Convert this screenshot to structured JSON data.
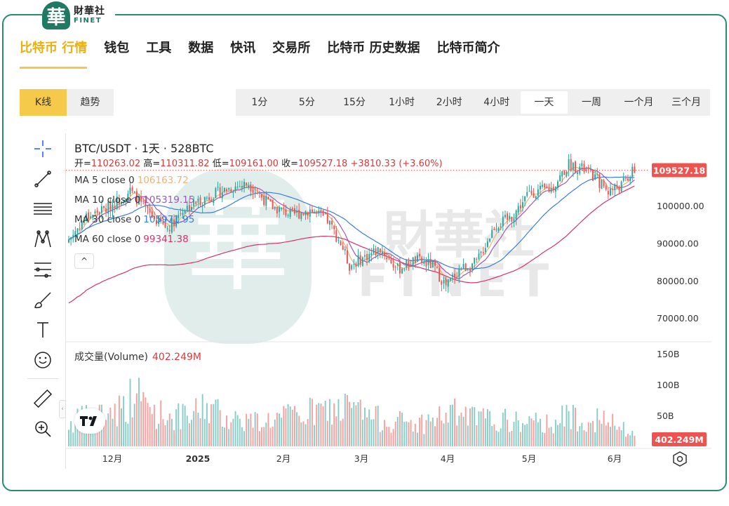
{
  "logo": {
    "mark": "華",
    "cn": "財華社",
    "en": "FINET"
  },
  "nav": {
    "items": [
      "比特币 行情",
      "钱包",
      "工具",
      "数据",
      "快讯",
      "交易所",
      "比特币 历史数据",
      "比特币简介"
    ],
    "active": 0
  },
  "chart_type_tabs": {
    "items": [
      "K线",
      "趋势"
    ],
    "active": 0
  },
  "period_tabs": {
    "items": [
      "1分",
      "5分",
      "15分",
      "1小时",
      "2小时",
      "4小时",
      "一天",
      "一周",
      "一个月",
      "三个月"
    ],
    "active": 6
  },
  "toolbar": {
    "icons": [
      "crosshair-icon",
      "trendline-icon",
      "fib-lines-icon",
      "pattern-icon",
      "prediction-icon",
      "brush-icon",
      "text-icon",
      "emoji-icon",
      "ruler-icon",
      "zoom-in-icon"
    ]
  },
  "legend": {
    "title": "BTC/USDT · 1天 · 528BTC",
    "open_label": "开=",
    "open": "110263.02",
    "high_label": "高=",
    "high": "110311.82",
    "low_label": "低=",
    "low": "109161.00",
    "close_label": "收=",
    "close": "109527.18",
    "change": "+3810.33 (+3.60%)",
    "ma": [
      {
        "label": "MA 5 close 0",
        "value": "106163.72",
        "color": "#f0b27a"
      },
      {
        "label": "MA 10 close 0",
        "value": "105319.15",
        "color": "#9b59b6"
      },
      {
        "label": "MA 30 close 0",
        "value": "105971.95",
        "color": "#3b7dd8"
      },
      {
        "label": "MA 60 close 0",
        "value": "99341.38",
        "color": "#d6336c"
      }
    ],
    "collapse": "^"
  },
  "volume_legend": {
    "label": "成交量(Volume)",
    "value": "402.249M"
  },
  "colors": {
    "up": "#26a69a",
    "down": "#ef5350",
    "accent": "#f5c94a",
    "brand": "#1f7a64"
  },
  "chart_data": {
    "type": "candlestick",
    "x_ticks": [
      "12月",
      "2025",
      "2月",
      "3月",
      "4月",
      "5月",
      "6月"
    ],
    "y_ticks": [
      "100000.00",
      "90000.00",
      "80000.00",
      "70000.00"
    ],
    "ylim": [
      64000,
      116000
    ],
    "volume_ticks": [
      "150B",
      "100B",
      "50B"
    ],
    "volume_ylim": [
      0,
      160
    ],
    "last_price": "109527.18",
    "last_volume": "402.249M",
    "close_anchors": [
      [
        0,
        91000
      ],
      [
        8,
        97000
      ],
      [
        18,
        99500
      ],
      [
        28,
        104000
      ],
      [
        38,
        97000
      ],
      [
        45,
        94000
      ],
      [
        52,
        99000
      ],
      [
        62,
        102000
      ],
      [
        72,
        104500
      ],
      [
        82,
        106000
      ],
      [
        92,
        100000
      ],
      [
        102,
        97500
      ],
      [
        110,
        99000
      ],
      [
        118,
        96000
      ],
      [
        124,
        90000
      ],
      [
        128,
        84000
      ],
      [
        134,
        86000
      ],
      [
        142,
        88500
      ],
      [
        150,
        83000
      ],
      [
        158,
        85500
      ],
      [
        166,
        84000
      ],
      [
        172,
        78500
      ],
      [
        178,
        83000
      ],
      [
        186,
        84800
      ],
      [
        194,
        94500
      ],
      [
        202,
        97000
      ],
      [
        210,
        103500
      ],
      [
        220,
        104500
      ],
      [
        228,
        111000
      ],
      [
        234,
        110000
      ],
      [
        240,
        107500
      ],
      [
        246,
        104000
      ],
      [
        252,
        105500
      ],
      [
        258,
        109500
      ]
    ],
    "volume_anchors": [
      [
        0,
        40
      ],
      [
        10,
        55
      ],
      [
        25,
        70
      ],
      [
        30,
        95
      ],
      [
        40,
        60
      ],
      [
        55,
        50
      ],
      [
        62,
        75
      ],
      [
        70,
        55
      ],
      [
        85,
        45
      ],
      [
        95,
        50
      ],
      [
        110,
        60
      ],
      [
        128,
        70
      ],
      [
        140,
        50
      ],
      [
        160,
        40
      ],
      [
        175,
        60
      ],
      [
        185,
        50
      ],
      [
        200,
        45
      ],
      [
        215,
        40
      ],
      [
        230,
        55
      ],
      [
        245,
        45
      ],
      [
        258,
        20
      ]
    ]
  }
}
